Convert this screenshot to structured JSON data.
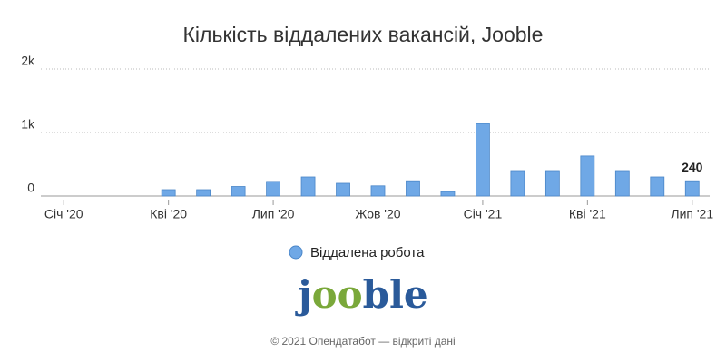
{
  "chart_data": {
    "type": "bar",
    "title": "Кількість віддалених вакансій, Jooble",
    "categories": [
      "Січ '20",
      null,
      null,
      "Кві '20",
      null,
      null,
      "Лип '20",
      null,
      null,
      "Жов '20",
      null,
      null,
      "Січ '21",
      null,
      null,
      "Кві '21",
      null,
      null,
      "Лип '21"
    ],
    "series": [
      {
        "name": "Віддалена робота",
        "color": "#6fa8e6",
        "values": [
          0,
          0,
          0,
          100,
          100,
          150,
          230,
          300,
          200,
          160,
          240,
          70,
          1140,
          400,
          400,
          630,
          400,
          300,
          240
        ],
        "value_labels": [
          null,
          null,
          null,
          null,
          null,
          null,
          null,
          null,
          null,
          null,
          null,
          null,
          null,
          null,
          null,
          null,
          null,
          null,
          "240"
        ]
      }
    ],
    "ylim": [
      0,
      2000
    ],
    "yticks": [
      0,
      {
        "value": 1000,
        "label": "1k"
      },
      {
        "value": 2000,
        "label": "2k"
      }
    ],
    "grid": true,
    "legend": "bottom"
  },
  "logo": {
    "parts": [
      "j",
      "oo",
      "ble"
    ]
  },
  "footer": "© 2021 Опендатабот — відкриті дані"
}
